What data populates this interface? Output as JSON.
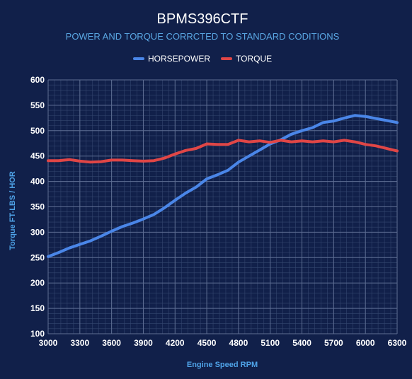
{
  "chart_data": {
    "type": "line",
    "title": "BPMS396CTF",
    "subtitle": "POWER AND TORQUE CORRCTED TO STANDARD CODITIONS",
    "xlabel": "Engine Speed RPM",
    "ylabel": "Torque FT-LBS / HOR",
    "xlim": [
      3000,
      6300
    ],
    "ylim": [
      100,
      600
    ],
    "x_ticks": [
      3000,
      3300,
      3600,
      3900,
      4200,
      4500,
      4800,
      5100,
      5400,
      5700,
      6000,
      6300
    ],
    "y_ticks": [
      100,
      150,
      200,
      250,
      300,
      350,
      400,
      450,
      500,
      550,
      600
    ],
    "grid": true,
    "legend_position": "top",
    "x": [
      3000,
      3100,
      3200,
      3300,
      3400,
      3500,
      3600,
      3700,
      3800,
      3900,
      4000,
      4100,
      4200,
      4300,
      4400,
      4500,
      4600,
      4700,
      4800,
      4900,
      5000,
      5100,
      5200,
      5300,
      5400,
      5500,
      5600,
      5700,
      5800,
      5900,
      6000,
      6100,
      6200,
      6300
    ],
    "series": [
      {
        "name": "HORSEPOWER",
        "color": "#4a86e8",
        "values": [
          252,
          260,
          269,
          276,
          283,
          292,
          302,
          311,
          318,
          326,
          335,
          348,
          363,
          377,
          389,
          405,
          413,
          422,
          438,
          450,
          462,
          474,
          482,
          493,
          500,
          506,
          516,
          519,
          525,
          530,
          528,
          524,
          520,
          516
        ]
      },
      {
        "name": "TORQUE",
        "color": "#e04646",
        "values": [
          441,
          441,
          443,
          440,
          438,
          439,
          442,
          442,
          441,
          440,
          441,
          446,
          454,
          461,
          465,
          474,
          473,
          473,
          481,
          478,
          480,
          477,
          481,
          478,
          480,
          478,
          480,
          478,
          481,
          478,
          473,
          470,
          465,
          460
        ]
      }
    ]
  }
}
